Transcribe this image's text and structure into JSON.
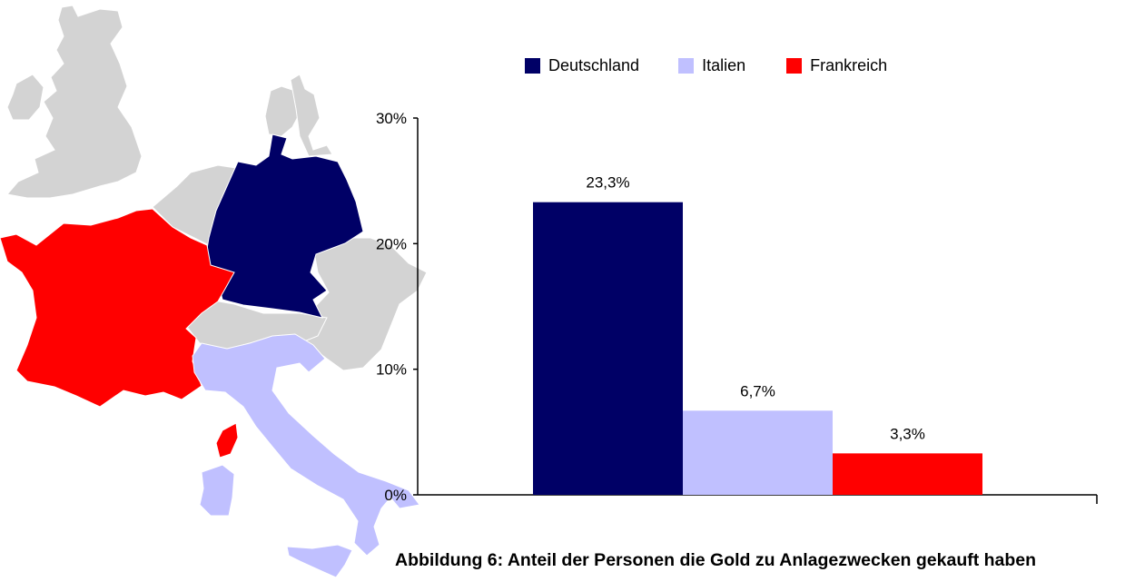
{
  "chart_data": {
    "type": "bar",
    "categories": [
      "Deutschland",
      "Italien",
      "Frankreich"
    ],
    "values": [
      23.3,
      6.7,
      3.3
    ],
    "value_labels": [
      "23,3%",
      "6,7%",
      "3,3%"
    ],
    "colors": [
      "#000066",
      "#c0c0ff",
      "#ff0000"
    ],
    "ylim": [
      0,
      30
    ],
    "yticks": [
      0,
      10,
      20,
      30
    ],
    "ytick_labels": [
      "0%",
      "10%",
      "20%",
      "30%"
    ],
    "grid": false,
    "legend_position": "top",
    "legend": [
      "Deutschland",
      "Italien",
      "Frankreich"
    ],
    "title": "",
    "xlabel": "",
    "ylabel": ""
  },
  "caption": "Abbildung 6: Anteil der Personen die Gold zu Anlagezwecken gekauft haben",
  "map": {
    "highlight_colors": {
      "germany": "#000066",
      "italy": "#c0c0ff",
      "france": "#ff0000",
      "other": "#d3d3d3"
    }
  }
}
